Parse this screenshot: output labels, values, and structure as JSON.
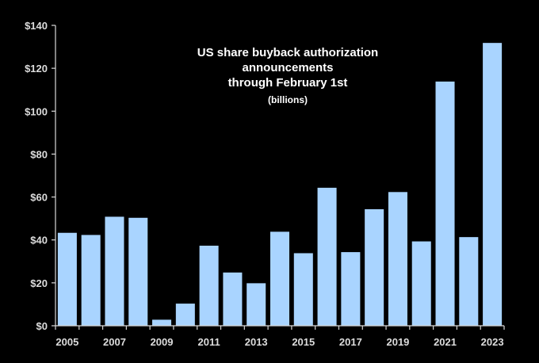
{
  "chart_data": {
    "type": "bar",
    "title": "US share buyback authorization announcements through February 1st",
    "title_lines": [
      "US share buyback authorization",
      "announcements",
      "through February 1st"
    ],
    "subtitle": "(billions)",
    "categories": [
      "2005",
      "2006",
      "2007",
      "2008",
      "2009",
      "2010",
      "2011",
      "2012",
      "2013",
      "2014",
      "2015",
      "2016",
      "2017",
      "2018",
      "2019",
      "2020",
      "2021",
      "2022",
      "2023"
    ],
    "x_tick_labels": [
      "2005",
      "2007",
      "2009",
      "2011",
      "2013",
      "2015",
      "2017",
      "2019",
      "2021",
      "2023"
    ],
    "values": [
      43.5,
      42.5,
      51,
      50.5,
      3,
      10.5,
      37.5,
      25,
      20,
      44,
      34,
      64.5,
      34.5,
      54.5,
      62.5,
      39.5,
      114,
      41.5,
      132
    ],
    "ylim": [
      0,
      140
    ],
    "y_ticks": [
      0,
      20,
      40,
      60,
      80,
      100,
      120,
      140
    ],
    "y_tick_labels": [
      "$0",
      "$20",
      "$40",
      "$60",
      "$80",
      "$100",
      "$120",
      "$140"
    ],
    "xlabel": "",
    "ylabel": "",
    "grid": false,
    "legend": "none",
    "colors": {
      "background": "#000000",
      "plot_area": "#000000",
      "bar_fill": "#a9d4ff",
      "bar_stroke": "#000000",
      "axis": "#d8d8d8",
      "text": "#ffffff"
    }
  }
}
